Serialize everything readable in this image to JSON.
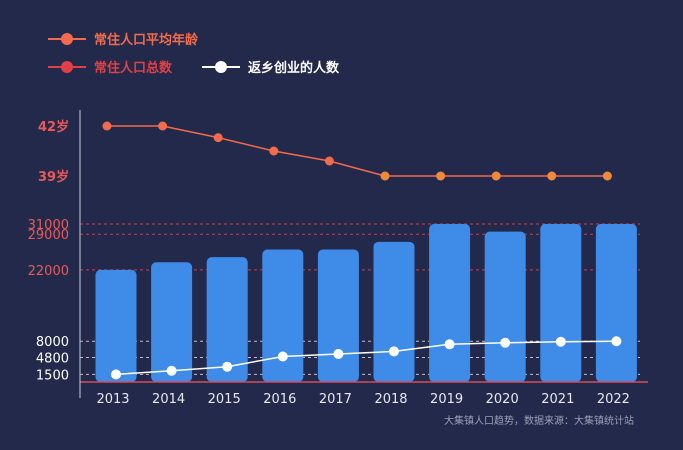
{
  "chart_data": {
    "type": "bar+line",
    "categories": [
      "2013",
      "2014",
      "2015",
      "2016",
      "2017",
      "2018",
      "2019",
      "2020",
      "2021",
      "2022"
    ],
    "series": [
      {
        "name": "常住人口平均年龄",
        "kind": "line",
        "values": [
          42,
          42,
          41.3,
          40.5,
          39.9,
          39,
          39,
          39,
          39,
          39
        ]
      },
      {
        "name": "常住人口总数",
        "kind": "bar",
        "values": [
          22000,
          23500,
          24500,
          26000,
          26000,
          27500,
          31000,
          29500,
          31000,
          31000
        ]
      },
      {
        "name": "返乡创业的人数",
        "kind": "line",
        "values": [
          1500,
          2200,
          3000,
          5000,
          5500,
          6000,
          7400,
          7700,
          7900,
          8000
        ]
      }
    ],
    "age_ticks": [
      "42岁",
      "39岁"
    ],
    "count_ticks": [
      "31000",
      "29000",
      "22000",
      "8000",
      "4800",
      "1500"
    ],
    "footnote": "大集镇人口趋势，数据来源：大集镇统计站"
  },
  "colors": {
    "background": "#23294a",
    "age_line": "#f36a4d",
    "age_marker_flat": "#f08a3a",
    "bar": "#3e8be8",
    "pop_legend": "#e04046",
    "return_line": "#ffffff",
    "axis": "#d94a5a",
    "tick_text_red": "#e85a5a",
    "tick_text_white": "#ffffff",
    "footnote": "#9aa0b8"
  }
}
